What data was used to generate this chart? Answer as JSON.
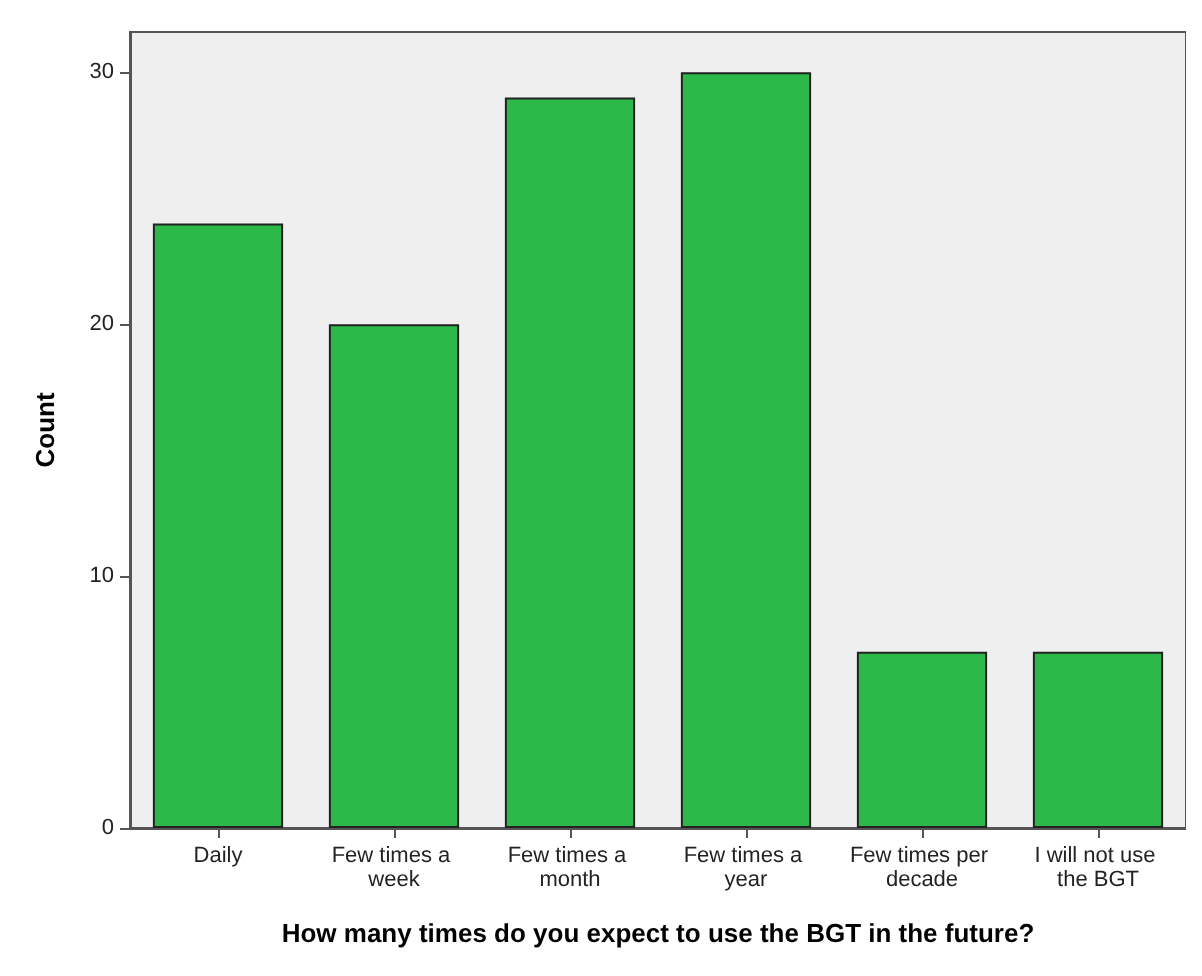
{
  "chart_data": {
    "type": "bar",
    "xlabel": "How many times do you expect to use the BGT in the future?",
    "ylabel": "Count",
    "categories": [
      "Daily",
      "Few times a week",
      "Few times a month",
      "Few times a year",
      "Few times per decade",
      "I will not use the BGT"
    ],
    "values": [
      24,
      20,
      29,
      30,
      7,
      7
    ],
    "color": "#2db84a",
    "ylim": [
      0,
      31.6
    ],
    "yticks": [
      0,
      10,
      20,
      30
    ],
    "grid": false
  }
}
